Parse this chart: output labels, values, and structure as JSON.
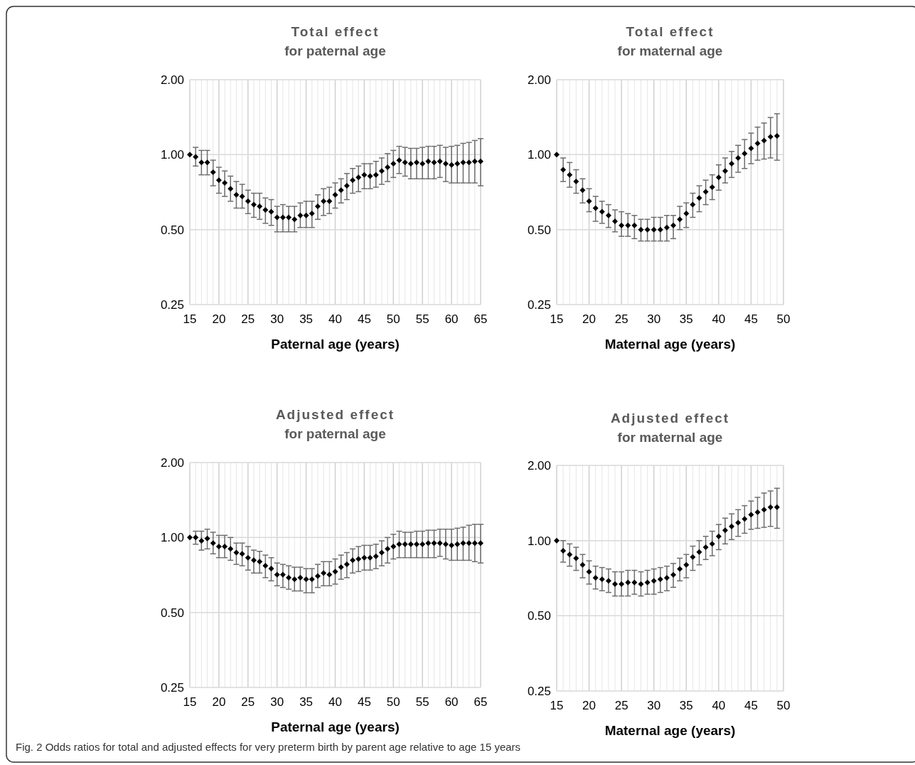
{
  "chart_data": [
    {
      "type": "scatter",
      "title": "Total effect",
      "subtitle": "for paternal age",
      "xlabel": "Paternal age (years)",
      "log": "y",
      "grid": true,
      "marker": "diamond",
      "xlim": [
        15,
        65
      ],
      "ylim": [
        0.25,
        2
      ],
      "yticks": [
        {
          "value": 0.25,
          "label": "0.25"
        },
        {
          "value": 0.5,
          "label": "0.50"
        },
        {
          "value": 1,
          "label": "1.00"
        },
        {
          "value": 2,
          "label": "2.00"
        }
      ],
      "xticks": [
        15,
        {
          "value": 16,
          "label": null
        },
        {
          "value": 17,
          "label": null
        },
        {
          "value": 18,
          "label": null
        },
        {
          "value": 19,
          "label": null
        },
        20,
        {
          "value": 21,
          "label": null
        },
        {
          "value": 22,
          "label": null
        },
        {
          "value": 23,
          "label": null
        },
        {
          "value": 24,
          "label": null
        },
        25,
        {
          "value": 26,
          "label": null
        },
        {
          "value": 27,
          "label": null
        },
        {
          "value": 28,
          "label": null
        },
        {
          "value": 29,
          "label": null
        },
        30,
        {
          "value": 31,
          "label": null
        },
        {
          "value": 32,
          "label": null
        },
        {
          "value": 33,
          "label": null
        },
        {
          "value": 34,
          "label": null
        },
        35,
        {
          "value": 36,
          "label": null
        },
        {
          "value": 37,
          "label": null
        },
        {
          "value": 38,
          "label": null
        },
        {
          "value": 39,
          "label": null
        },
        40,
        {
          "value": 41,
          "label": null
        },
        {
          "value": 42,
          "label": null
        },
        {
          "value": 43,
          "label": null
        },
        {
          "value": 44,
          "label": null
        },
        45,
        {
          "value": 46,
          "label": null
        },
        {
          "value": 47,
          "label": null
        },
        {
          "value": 48,
          "label": null
        },
        {
          "value": 49,
          "label": null
        },
        50,
        {
          "value": 51,
          "label": null
        },
        {
          "value": 52,
          "label": null
        },
        {
          "value": 53,
          "label": null
        },
        {
          "value": 54,
          "label": null
        },
        55,
        {
          "value": 56,
          "label": null
        },
        {
          "value": 57,
          "label": null
        },
        {
          "value": 58,
          "label": null
        },
        {
          "value": 59,
          "label": null
        },
        60,
        {
          "value": 61,
          "label": null
        },
        {
          "value": 62,
          "label": null
        },
        {
          "value": 63,
          "label": null
        },
        {
          "value": 64,
          "label": null
        },
        65
      ],
      "annotations": [
        "Fig. 2 Odds ratios for total and adjusted effects for very preterm birth by parent age relative to age 15 years"
      ],
      "series": [
        {
          "color": "#000000",
          "x": [
            15,
            16,
            17,
            18,
            19,
            20,
            21,
            22,
            23,
            24,
            25,
            26,
            27,
            28,
            29,
            30,
            31,
            32,
            33,
            34,
            35,
            36,
            37,
            38,
            39,
            40,
            41,
            42,
            43,
            44,
            45,
            46,
            47,
            48,
            49,
            50,
            51,
            52,
            53,
            54,
            55,
            56,
            57,
            58,
            59,
            60,
            61,
            62,
            63,
            64,
            65
          ],
          "values": [
            1.0,
            0.98,
            0.93,
            0.93,
            0.85,
            0.79,
            0.77,
            0.73,
            0.69,
            0.68,
            0.65,
            0.63,
            0.62,
            0.6,
            0.59,
            0.56,
            0.56,
            0.56,
            0.55,
            0.57,
            0.57,
            0.58,
            0.62,
            0.65,
            0.65,
            0.69,
            0.72,
            0.75,
            0.79,
            0.81,
            0.83,
            0.82,
            0.83,
            0.86,
            0.89,
            0.92,
            0.95,
            0.93,
            0.92,
            0.93,
            0.92,
            0.94,
            0.93,
            0.94,
            0.92,
            0.91,
            0.92,
            0.93,
            0.93,
            0.94,
            0.94
          ],
          "errors": [
            null,
            [
              0.9,
              1.07
            ],
            [
              0.83,
              1.04
            ],
            [
              0.83,
              1.04
            ],
            [
              0.75,
              0.95
            ],
            [
              0.7,
              0.89
            ],
            [
              0.68,
              0.86
            ],
            [
              0.65,
              0.82
            ],
            [
              0.61,
              0.78
            ],
            [
              0.61,
              0.76
            ],
            [
              0.58,
              0.72
            ],
            [
              0.56,
              0.7
            ],
            [
              0.55,
              0.7
            ],
            [
              0.53,
              0.67
            ],
            [
              0.52,
              0.66
            ],
            [
              0.49,
              0.62
            ],
            [
              0.49,
              0.63
            ],
            [
              0.49,
              0.62
            ],
            [
              0.49,
              0.62
            ],
            [
              0.51,
              0.64
            ],
            [
              0.51,
              0.65
            ],
            [
              0.51,
              0.65
            ],
            [
              0.55,
              0.69
            ],
            [
              0.57,
              0.73
            ],
            [
              0.58,
              0.74
            ],
            [
              0.61,
              0.77
            ],
            [
              0.64,
              0.8
            ],
            [
              0.66,
              0.84
            ],
            [
              0.7,
              0.88
            ],
            [
              0.71,
              0.9
            ],
            [
              0.73,
              0.92
            ],
            [
              0.73,
              0.92
            ],
            [
              0.74,
              0.94
            ],
            [
              0.76,
              0.97
            ],
            [
              0.78,
              1.01
            ],
            [
              0.81,
              1.04
            ],
            [
              0.84,
              1.08
            ],
            [
              0.82,
              1.07
            ],
            [
              0.8,
              1.06
            ],
            [
              0.8,
              1.06
            ],
            [
              0.8,
              1.07
            ],
            [
              0.8,
              1.08
            ],
            [
              0.8,
              1.08
            ],
            [
              0.81,
              1.09
            ],
            [
              0.78,
              1.07
            ],
            [
              0.77,
              1.08
            ],
            [
              0.77,
              1.09
            ],
            [
              0.77,
              1.11
            ],
            [
              0.77,
              1.12
            ],
            [
              0.77,
              1.14
            ],
            [
              0.75,
              1.16
            ]
          ]
        }
      ]
    },
    {
      "type": "scatter",
      "title": "Total effect",
      "subtitle": "for maternal age",
      "xlabel": "Maternal age (years)",
      "log": "y",
      "grid": true,
      "marker": "diamond",
      "xlim": [
        15,
        50
      ],
      "ylim": [
        0.25,
        2
      ],
      "yticks": [
        {
          "value": 0.25,
          "label": "0.25"
        },
        {
          "value": 0.5,
          "label": "0.50"
        },
        {
          "value": 1,
          "label": "1.00"
        },
        {
          "value": 2,
          "label": "2.00"
        }
      ],
      "xticks": [
        15,
        {
          "value": 16,
          "label": null
        },
        {
          "value": 17,
          "label": null
        },
        {
          "value": 18,
          "label": null
        },
        {
          "value": 19,
          "label": null
        },
        20,
        {
          "value": 21,
          "label": null
        },
        {
          "value": 22,
          "label": null
        },
        {
          "value": 23,
          "label": null
        },
        {
          "value": 24,
          "label": null
        },
        25,
        {
          "value": 26,
          "label": null
        },
        {
          "value": 27,
          "label": null
        },
        {
          "value": 28,
          "label": null
        },
        {
          "value": 29,
          "label": null
        },
        30,
        {
          "value": 31,
          "label": null
        },
        {
          "value": 32,
          "label": null
        },
        {
          "value": 33,
          "label": null
        },
        {
          "value": 34,
          "label": null
        },
        35,
        {
          "value": 36,
          "label": null
        },
        {
          "value": 37,
          "label": null
        },
        {
          "value": 38,
          "label": null
        },
        {
          "value": 39,
          "label": null
        },
        40,
        {
          "value": 41,
          "label": null
        },
        {
          "value": 42,
          "label": null
        },
        {
          "value": 43,
          "label": null
        },
        {
          "value": 44,
          "label": null
        },
        45,
        {
          "value": 46,
          "label": null
        },
        {
          "value": 47,
          "label": null
        },
        {
          "value": 48,
          "label": null
        },
        {
          "value": 49,
          "label": null
        },
        50
      ],
      "series": [
        {
          "color": "#000000",
          "x": [
            15,
            16,
            17,
            18,
            19,
            20,
            21,
            22,
            23,
            24,
            25,
            26,
            27,
            28,
            29,
            30,
            31,
            32,
            33,
            34,
            35,
            36,
            37,
            38,
            39,
            40,
            41,
            42,
            43,
            44,
            45,
            46,
            47,
            48,
            49
          ],
          "values": [
            1.0,
            0.87,
            0.83,
            0.78,
            0.72,
            0.65,
            0.61,
            0.59,
            0.57,
            0.54,
            0.52,
            0.52,
            0.52,
            0.5,
            0.5,
            0.5,
            0.5,
            0.51,
            0.52,
            0.55,
            0.58,
            0.63,
            0.67,
            0.71,
            0.74,
            0.81,
            0.86,
            0.92,
            0.97,
            1.01,
            1.06,
            1.11,
            1.14,
            1.18,
            1.19
          ],
          "errors": [
            null,
            [
              0.78,
              0.97
            ],
            [
              0.74,
              0.93
            ],
            [
              0.7,
              0.87
            ],
            [
              0.64,
              0.8
            ],
            [
              0.59,
              0.73
            ],
            [
              0.54,
              0.68
            ],
            [
              0.53,
              0.65
            ],
            [
              0.51,
              0.63
            ],
            [
              0.49,
              0.6
            ],
            [
              0.47,
              0.59
            ],
            [
              0.47,
              0.58
            ],
            [
              0.46,
              0.57
            ],
            [
              0.45,
              0.55
            ],
            [
              0.45,
              0.55
            ],
            [
              0.45,
              0.56
            ],
            [
              0.45,
              0.56
            ],
            [
              0.45,
              0.57
            ],
            [
              0.46,
              0.57
            ],
            [
              0.5,
              0.62
            ],
            [
              0.51,
              0.64
            ],
            [
              0.56,
              0.7
            ],
            [
              0.59,
              0.75
            ],
            [
              0.63,
              0.79
            ],
            [
              0.66,
              0.83
            ],
            [
              0.72,
              0.91
            ],
            [
              0.77,
              0.97
            ],
            [
              0.81,
              1.03
            ],
            [
              0.85,
              1.09
            ],
            [
              0.88,
              1.15
            ],
            [
              0.92,
              1.22
            ],
            [
              0.95,
              1.29
            ],
            [
              0.96,
              1.34
            ],
            [
              0.97,
              1.41
            ],
            [
              0.95,
              1.46
            ]
          ]
        }
      ]
    },
    {
      "type": "scatter",
      "title": "Adjusted effect",
      "subtitle": "for paternal age",
      "xlabel": "Paternal age (years)",
      "log": "y",
      "grid": true,
      "marker": "diamond",
      "xlim": [
        15,
        65
      ],
      "ylim": [
        0.25,
        2
      ],
      "yticks": [
        {
          "value": 0.25,
          "label": "0.25"
        },
        {
          "value": 0.5,
          "label": "0.50"
        },
        {
          "value": 1,
          "label": "1.00"
        },
        {
          "value": 2,
          "label": "2.00"
        }
      ],
      "xticks": [
        15,
        {
          "value": 16,
          "label": null
        },
        {
          "value": 17,
          "label": null
        },
        {
          "value": 18,
          "label": null
        },
        {
          "value": 19,
          "label": null
        },
        20,
        {
          "value": 21,
          "label": null
        },
        {
          "value": 22,
          "label": null
        },
        {
          "value": 23,
          "label": null
        },
        {
          "value": 24,
          "label": null
        },
        25,
        {
          "value": 26,
          "label": null
        },
        {
          "value": 27,
          "label": null
        },
        {
          "value": 28,
          "label": null
        },
        {
          "value": 29,
          "label": null
        },
        30,
        {
          "value": 31,
          "label": null
        },
        {
          "value": 32,
          "label": null
        },
        {
          "value": 33,
          "label": null
        },
        {
          "value": 34,
          "label": null
        },
        35,
        {
          "value": 36,
          "label": null
        },
        {
          "value": 37,
          "label": null
        },
        {
          "value": 38,
          "label": null
        },
        {
          "value": 39,
          "label": null
        },
        40,
        {
          "value": 41,
          "label": null
        },
        {
          "value": 42,
          "label": null
        },
        {
          "value": 43,
          "label": null
        },
        {
          "value": 44,
          "label": null
        },
        45,
        {
          "value": 46,
          "label": null
        },
        {
          "value": 47,
          "label": null
        },
        {
          "value": 48,
          "label": null
        },
        {
          "value": 49,
          "label": null
        },
        50,
        {
          "value": 51,
          "label": null
        },
        {
          "value": 52,
          "label": null
        },
        {
          "value": 53,
          "label": null
        },
        {
          "value": 54,
          "label": null
        },
        55,
        {
          "value": 56,
          "label": null
        },
        {
          "value": 57,
          "label": null
        },
        {
          "value": 58,
          "label": null
        },
        {
          "value": 59,
          "label": null
        },
        60,
        {
          "value": 61,
          "label": null
        },
        {
          "value": 62,
          "label": null
        },
        {
          "value": 63,
          "label": null
        },
        {
          "value": 64,
          "label": null
        },
        65
      ],
      "series": [
        {
          "color": "#000000",
          "x": [
            15,
            16,
            17,
            18,
            19,
            20,
            21,
            22,
            23,
            24,
            25,
            26,
            27,
            28,
            29,
            30,
            31,
            32,
            33,
            34,
            35,
            36,
            37,
            38,
            39,
            40,
            41,
            42,
            43,
            44,
            45,
            46,
            47,
            48,
            49,
            50,
            51,
            52,
            53,
            54,
            55,
            56,
            57,
            58,
            59,
            60,
            61,
            62,
            63,
            64,
            65
          ],
          "values": [
            1.0,
            1.0,
            0.97,
            0.99,
            0.95,
            0.92,
            0.92,
            0.9,
            0.87,
            0.86,
            0.83,
            0.81,
            0.8,
            0.77,
            0.75,
            0.71,
            0.71,
            0.69,
            0.68,
            0.69,
            0.68,
            0.68,
            0.7,
            0.72,
            0.71,
            0.73,
            0.76,
            0.78,
            0.81,
            0.82,
            0.83,
            0.83,
            0.84,
            0.87,
            0.9,
            0.92,
            0.94,
            0.94,
            0.94,
            0.94,
            0.94,
            0.95,
            0.95,
            0.95,
            0.94,
            0.93,
            0.94,
            0.95,
            0.95,
            0.95,
            0.95
          ],
          "errors": [
            null,
            [
              0.94,
              1.06
            ],
            [
              0.89,
              1.06
            ],
            [
              0.9,
              1.08
            ],
            [
              0.86,
              1.05
            ],
            [
              0.83,
              1.02
            ],
            [
              0.83,
              1.02
            ],
            [
              0.81,
              1.0
            ],
            [
              0.78,
              0.95
            ],
            [
              0.77,
              0.95
            ],
            [
              0.74,
              0.92
            ],
            [
              0.72,
              0.89
            ],
            [
              0.72,
              0.88
            ],
            [
              0.69,
              0.85
            ],
            [
              0.67,
              0.83
            ],
            [
              0.64,
              0.79
            ],
            [
              0.63,
              0.78
            ],
            [
              0.62,
              0.77
            ],
            [
              0.61,
              0.76
            ],
            [
              0.61,
              0.76
            ],
            [
              0.6,
              0.75
            ],
            [
              0.6,
              0.75
            ],
            [
              0.63,
              0.78
            ],
            [
              0.64,
              0.8
            ],
            [
              0.64,
              0.8
            ],
            [
              0.65,
              0.82
            ],
            [
              0.68,
              0.85
            ],
            [
              0.69,
              0.87
            ],
            [
              0.72,
              0.9
            ],
            [
              0.73,
              0.92
            ],
            [
              0.74,
              0.93
            ],
            [
              0.74,
              0.93
            ],
            [
              0.75,
              0.94
            ],
            [
              0.77,
              0.97
            ],
            [
              0.79,
              1.0
            ],
            [
              0.82,
              1.03
            ],
            [
              0.83,
              1.06
            ],
            [
              0.83,
              1.05
            ],
            [
              0.83,
              1.05
            ],
            [
              0.83,
              1.06
            ],
            [
              0.83,
              1.06
            ],
            [
              0.83,
              1.07
            ],
            [
              0.83,
              1.07
            ],
            [
              0.84,
              1.08
            ],
            [
              0.82,
              1.08
            ],
            [
              0.81,
              1.08
            ],
            [
              0.81,
              1.09
            ],
            [
              0.81,
              1.1
            ],
            [
              0.81,
              1.12
            ],
            [
              0.8,
              1.13
            ],
            [
              0.79,
              1.13
            ]
          ]
        }
      ]
    },
    {
      "type": "scatter",
      "title": "Adjusted effect",
      "subtitle": "for maternal age",
      "xlabel": "Maternal age (years)",
      "log": "y",
      "grid": true,
      "marker": "diamond",
      "xlim": [
        15,
        50
      ],
      "ylim": [
        0.25,
        2
      ],
      "yticks": [
        {
          "value": 0.25,
          "label": "0.25"
        },
        {
          "value": 0.5,
          "label": "0.50"
        },
        {
          "value": 1,
          "label": "1.00"
        },
        {
          "value": 2,
          "label": "2.00"
        }
      ],
      "xticks": [
        15,
        {
          "value": 16,
          "label": null
        },
        {
          "value": 17,
          "label": null
        },
        {
          "value": 18,
          "label": null
        },
        {
          "value": 19,
          "label": null
        },
        20,
        {
          "value": 21,
          "label": null
        },
        {
          "value": 22,
          "label": null
        },
        {
          "value": 23,
          "label": null
        },
        {
          "value": 24,
          "label": null
        },
        25,
        {
          "value": 26,
          "label": null
        },
        {
          "value": 27,
          "label": null
        },
        {
          "value": 28,
          "label": null
        },
        {
          "value": 29,
          "label": null
        },
        30,
        {
          "value": 31,
          "label": null
        },
        {
          "value": 32,
          "label": null
        },
        {
          "value": 33,
          "label": null
        },
        {
          "value": 34,
          "label": null
        },
        35,
        {
          "value": 36,
          "label": null
        },
        {
          "value": 37,
          "label": null
        },
        {
          "value": 38,
          "label": null
        },
        {
          "value": 39,
          "label": null
        },
        40,
        {
          "value": 41,
          "label": null
        },
        {
          "value": 42,
          "label": null
        },
        {
          "value": 43,
          "label": null
        },
        {
          "value": 44,
          "label": null
        },
        45,
        {
          "value": 46,
          "label": null
        },
        {
          "value": 47,
          "label": null
        },
        {
          "value": 48,
          "label": null
        },
        {
          "value": 49,
          "label": null
        },
        50
      ],
      "series": [
        {
          "color": "#000000",
          "x": [
            15,
            16,
            17,
            18,
            19,
            20,
            21,
            22,
            23,
            24,
            25,
            26,
            27,
            28,
            29,
            30,
            31,
            32,
            33,
            34,
            35,
            36,
            37,
            38,
            39,
            40,
            41,
            42,
            43,
            44,
            45,
            46,
            47,
            48,
            49
          ],
          "values": [
            1.0,
            0.91,
            0.88,
            0.85,
            0.8,
            0.75,
            0.71,
            0.7,
            0.69,
            0.67,
            0.67,
            0.68,
            0.68,
            0.67,
            0.68,
            0.69,
            0.7,
            0.71,
            0.73,
            0.77,
            0.8,
            0.86,
            0.9,
            0.94,
            0.97,
            1.04,
            1.1,
            1.14,
            1.18,
            1.22,
            1.27,
            1.3,
            1.33,
            1.36,
            1.36
          ],
          "errors": [
            null,
            [
              0.82,
              1.0
            ],
            [
              0.79,
              0.97
            ],
            [
              0.76,
              0.94
            ],
            [
              0.71,
              0.88
            ],
            [
              0.67,
              0.83
            ],
            [
              0.64,
              0.79
            ],
            [
              0.63,
              0.78
            ],
            [
              0.62,
              0.77
            ],
            [
              0.6,
              0.75
            ],
            [
              0.6,
              0.75
            ],
            [
              0.6,
              0.76
            ],
            [
              0.61,
              0.76
            ],
            [
              0.6,
              0.75
            ],
            [
              0.61,
              0.76
            ],
            [
              0.61,
              0.77
            ],
            [
              0.62,
              0.78
            ],
            [
              0.63,
              0.79
            ],
            [
              0.65,
              0.81
            ],
            [
              0.69,
              0.85
            ],
            [
              0.71,
              0.88
            ],
            [
              0.76,
              0.95
            ],
            [
              0.8,
              1.0
            ],
            [
              0.84,
              1.04
            ],
            [
              0.87,
              1.09
            ],
            [
              0.92,
              1.16
            ],
            [
              0.97,
              1.23
            ],
            [
              1.01,
              1.28
            ],
            [
              1.04,
              1.33
            ],
            [
              1.07,
              1.38
            ],
            [
              1.11,
              1.44
            ],
            [
              1.12,
              1.49
            ],
            [
              1.13,
              1.55
            ],
            [
              1.14,
              1.58
            ],
            [
              1.12,
              1.62
            ]
          ]
        }
      ]
    }
  ]
}
